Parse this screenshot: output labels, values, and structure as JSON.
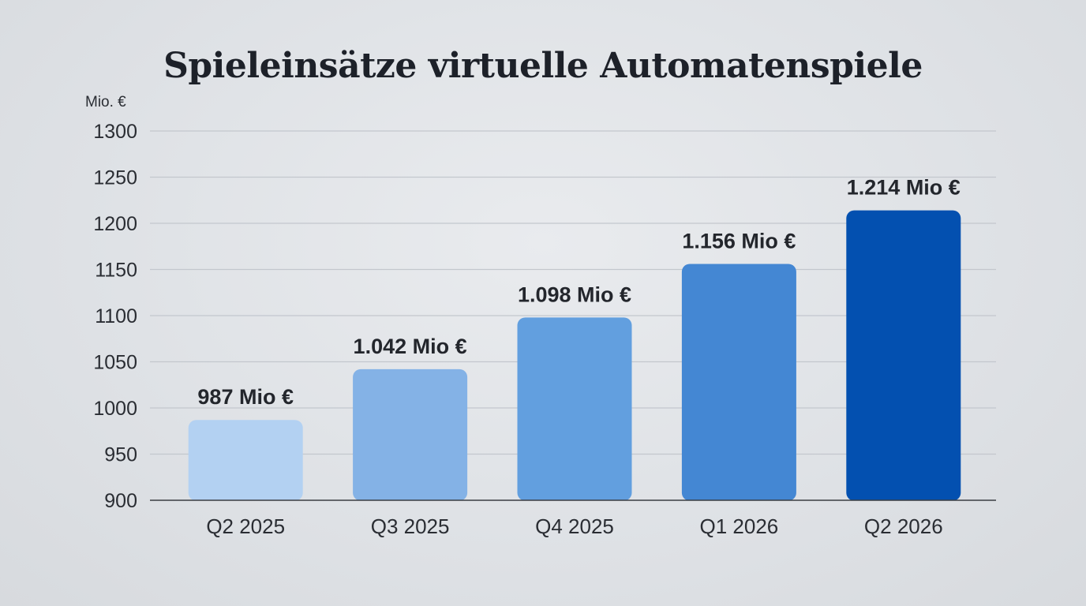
{
  "chart_data": {
    "type": "bar",
    "title": "Spieleinsätze virtuelle Automatenspiele",
    "ylabel": "Mio. €",
    "xlabel": "",
    "categories": [
      "Q2 2025",
      "Q3 2025",
      "Q4 2025",
      "Q1 2026",
      "Q2 2026"
    ],
    "values": [
      987,
      1042,
      1098,
      1156,
      1214
    ],
    "data_labels": [
      "987 Mio €",
      "1.042 Mio €",
      "1.098 Mio €",
      "1.156 Mio €",
      "1.214 Mio €"
    ],
    "ylim": [
      900,
      1300
    ],
    "yticks": [
      1300,
      1250,
      1200,
      1150,
      1100,
      1050,
      1000,
      950,
      900
    ],
    "grid": true,
    "legend": "none",
    "colors": [
      "#b3d1f2",
      "#84b2e6",
      "#629fdf",
      "#4487d3",
      "#0350b0"
    ]
  }
}
